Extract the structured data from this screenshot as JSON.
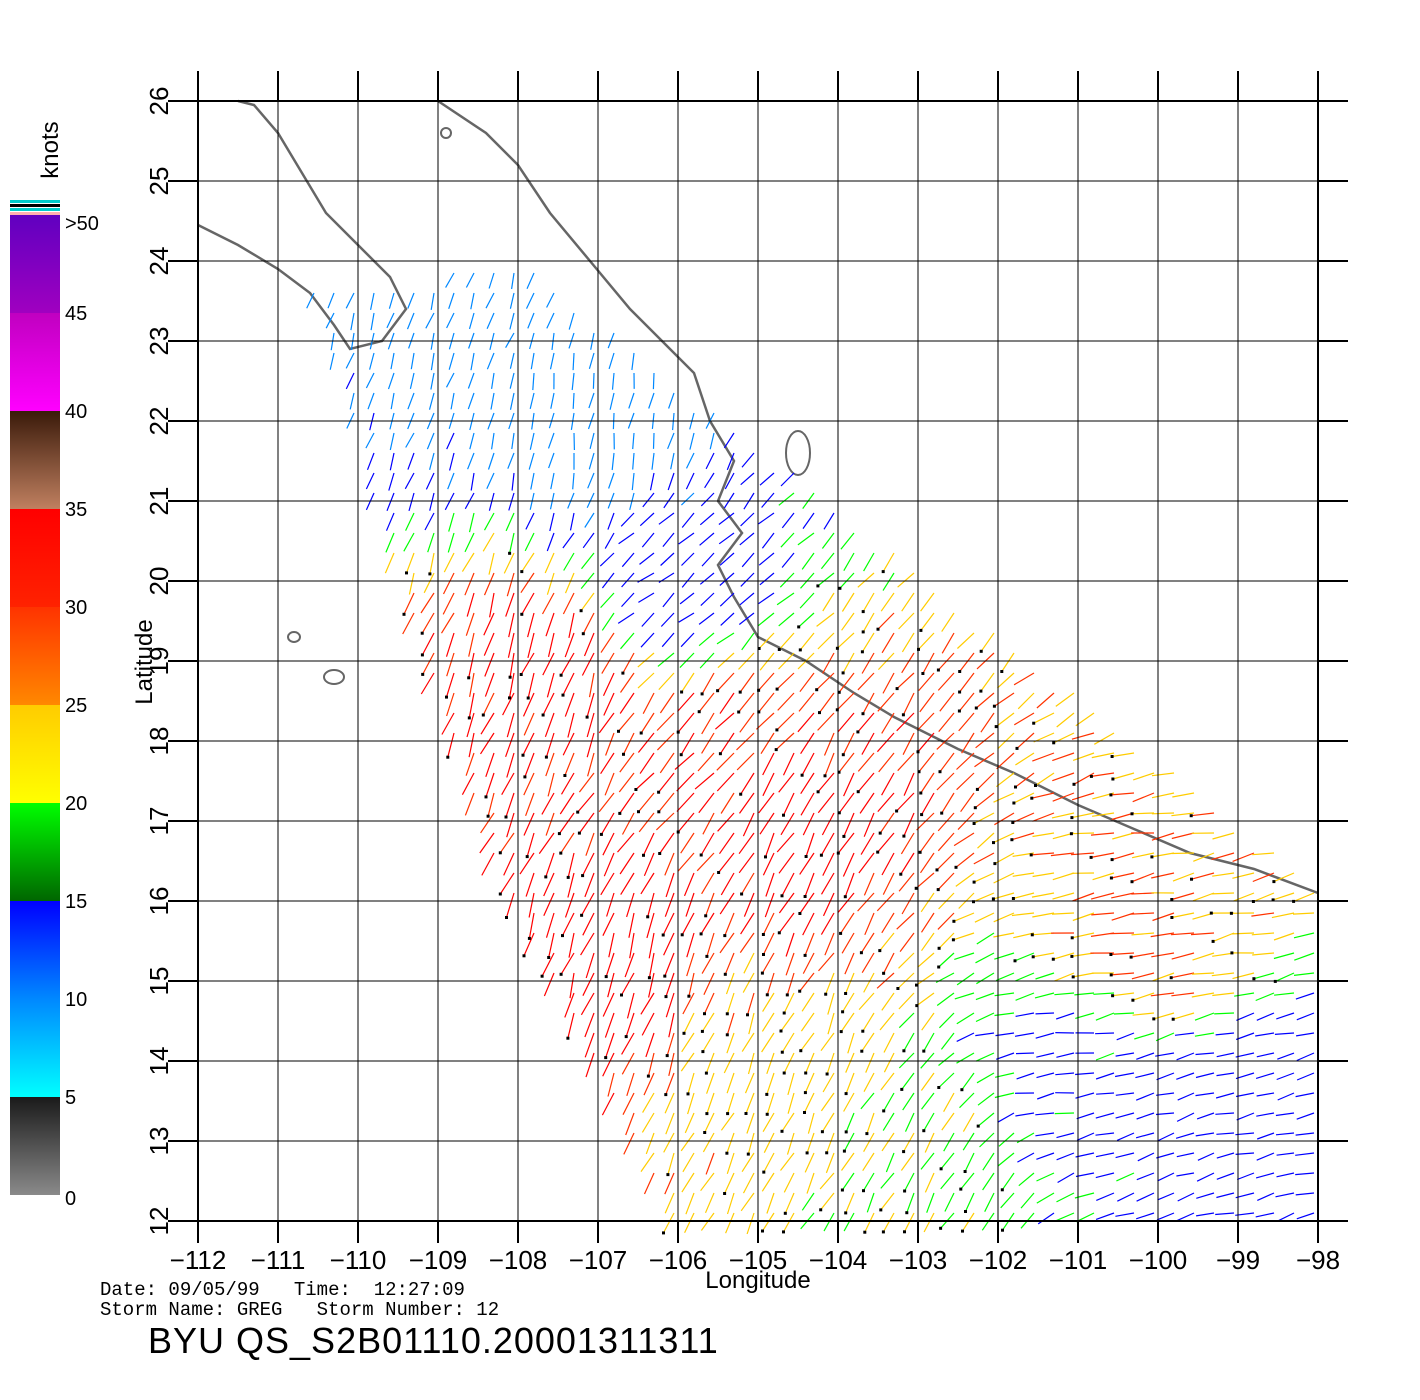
{
  "chart_data": {
    "type": "wind-vector-map",
    "xlabel": "Longitude",
    "ylabel": "Latitude",
    "x_ticks": [
      "-112",
      "-111",
      "-110",
      "-109",
      "-108",
      "-107",
      "-106",
      "-105",
      "-104",
      "-103",
      "-102",
      "-101",
      "-100",
      "-99",
      "-98"
    ],
    "y_ticks": [
      "12",
      "13",
      "14",
      "15",
      "16",
      "17",
      "18",
      "19",
      "20",
      "21",
      "22",
      "23",
      "24",
      "25",
      "26"
    ],
    "xlim": [
      -112,
      -98
    ],
    "ylim": [
      12,
      26
    ],
    "grid": true,
    "colorbar": {
      "title": "knots",
      "labels": [
        "0",
        "5",
        "10",
        "15",
        "20",
        "25",
        "30",
        "35",
        "40",
        "45",
        ">50"
      ],
      "range": [
        0,
        50
      ],
      "bands": [
        {
          "from": 0,
          "to": 5,
          "colors": [
            "#8a8a8a",
            "#1a1a1a"
          ]
        },
        {
          "from": 5,
          "to": 10,
          "colors": [
            "#00ffff",
            "#0088ff"
          ]
        },
        {
          "from": 10,
          "to": 15,
          "colors": [
            "#0088ff",
            "#0000ff"
          ]
        },
        {
          "from": 15,
          "to": 20,
          "colors": [
            "#006600",
            "#00ff00"
          ]
        },
        {
          "from": 20,
          "to": 25,
          "colors": [
            "#ffff00",
            "#ffcc00"
          ]
        },
        {
          "from": 25,
          "to": 30,
          "colors": [
            "#ff8800",
            "#ff3300"
          ]
        },
        {
          "from": 30,
          "to": 35,
          "colors": [
            "#ff2200",
            "#ff0000"
          ]
        },
        {
          "from": 35,
          "to": 40,
          "colors": [
            "#c08060",
            "#3a1a0a"
          ]
        },
        {
          "from": 40,
          "to": 45,
          "colors": [
            "#ff00ff",
            "#c000c0"
          ]
        },
        {
          "from": 45,
          "to": 50,
          "colors": [
            "#a000c0",
            "#6000c0"
          ]
        }
      ]
    },
    "coastline": [
      [
        -112,
        24.45
      ],
      [
        -111.5,
        24.2
      ],
      [
        -111.0,
        23.9
      ],
      [
        -110.6,
        23.6
      ],
      [
        -110.3,
        23.2
      ],
      [
        -110.1,
        22.9
      ],
      [
        -109.7,
        23.0
      ],
      [
        -109.4,
        23.4
      ],
      [
        -109.6,
        23.8
      ],
      [
        -110.0,
        24.2
      ],
      [
        -110.4,
        24.6
      ],
      [
        -110.7,
        25.1
      ],
      [
        -111.0,
        25.6
      ],
      [
        -111.3,
        25.95
      ],
      [
        -111.5,
        26.0
      ]
    ],
    "mainland": [
      [
        -109.0,
        26.0
      ],
      [
        -108.4,
        25.6
      ],
      [
        -108.0,
        25.2
      ],
      [
        -107.6,
        24.6
      ],
      [
        -107.1,
        24.0
      ],
      [
        -106.6,
        23.4
      ],
      [
        -106.2,
        23.0
      ],
      [
        -105.8,
        22.6
      ],
      [
        -105.6,
        22.0
      ],
      [
        -105.3,
        21.5
      ],
      [
        -105.5,
        21.0
      ],
      [
        -105.2,
        20.6
      ],
      [
        -105.5,
        20.2
      ],
      [
        -105.3,
        19.8
      ],
      [
        -105.0,
        19.3
      ],
      [
        -104.4,
        19.0
      ],
      [
        -103.8,
        18.6
      ],
      [
        -103.3,
        18.3
      ],
      [
        -102.5,
        17.9
      ],
      [
        -101.8,
        17.6
      ],
      [
        -101.0,
        17.2
      ],
      [
        -100.3,
        16.9
      ],
      [
        -99.6,
        16.6
      ],
      [
        -98.8,
        16.4
      ],
      [
        -98.0,
        16.1
      ]
    ],
    "wind_vectors": {
      "units": "knots",
      "swath_corners": [
        [
          -110.6,
          23.6
        ],
        [
          -107.9,
          24.0
        ],
        [
          -98.0,
          16.2
        ],
        [
          -98.0,
          12.0
        ],
        [
          -106.0,
          12.0
        ],
        [
          -108.5,
          17.0
        ]
      ],
      "samples": [
        {
          "lon": -108.5,
          "lat": 23.5,
          "speed": 8,
          "dir": 200
        },
        {
          "lon": -107.0,
          "lat": 22.0,
          "speed": 7,
          "dir": 190
        },
        {
          "lon": -106.0,
          "lat": 20.0,
          "speed": 12,
          "dir": 230
        },
        {
          "lon": -107.5,
          "lat": 19.0,
          "speed": 32,
          "dir": 200
        },
        {
          "lon": -105.5,
          "lat": 18.0,
          "speed": 30,
          "dir": 220
        },
        {
          "lon": -104.5,
          "lat": 17.0,
          "speed": 32,
          "dir": 210
        },
        {
          "lon": -107.0,
          "lat": 15.0,
          "speed": 33,
          "dir": 200
        },
        {
          "lon": -105.0,
          "lat": 14.0,
          "speed": 23,
          "dir": 205
        },
        {
          "lon": -103.0,
          "lat": 13.0,
          "speed": 20,
          "dir": 210
        },
        {
          "lon": -101.0,
          "lat": 14.0,
          "speed": 13,
          "dir": 260
        },
        {
          "lon": -100.0,
          "lat": 15.5,
          "speed": 26,
          "dir": 260
        },
        {
          "lon": -99.0,
          "lat": 13.5,
          "speed": 12,
          "dir": 255
        }
      ]
    }
  },
  "info": {
    "date_label": "Date:",
    "date": "09/05/99",
    "time_label": "Time:",
    "time": "12:27:09",
    "storm_name_label": "Storm Name:",
    "storm_name": "GREG",
    "storm_number_label": "Storm Number:",
    "storm_number": "12",
    "product_id": "BYU QS_S2B01110.20001311311"
  }
}
